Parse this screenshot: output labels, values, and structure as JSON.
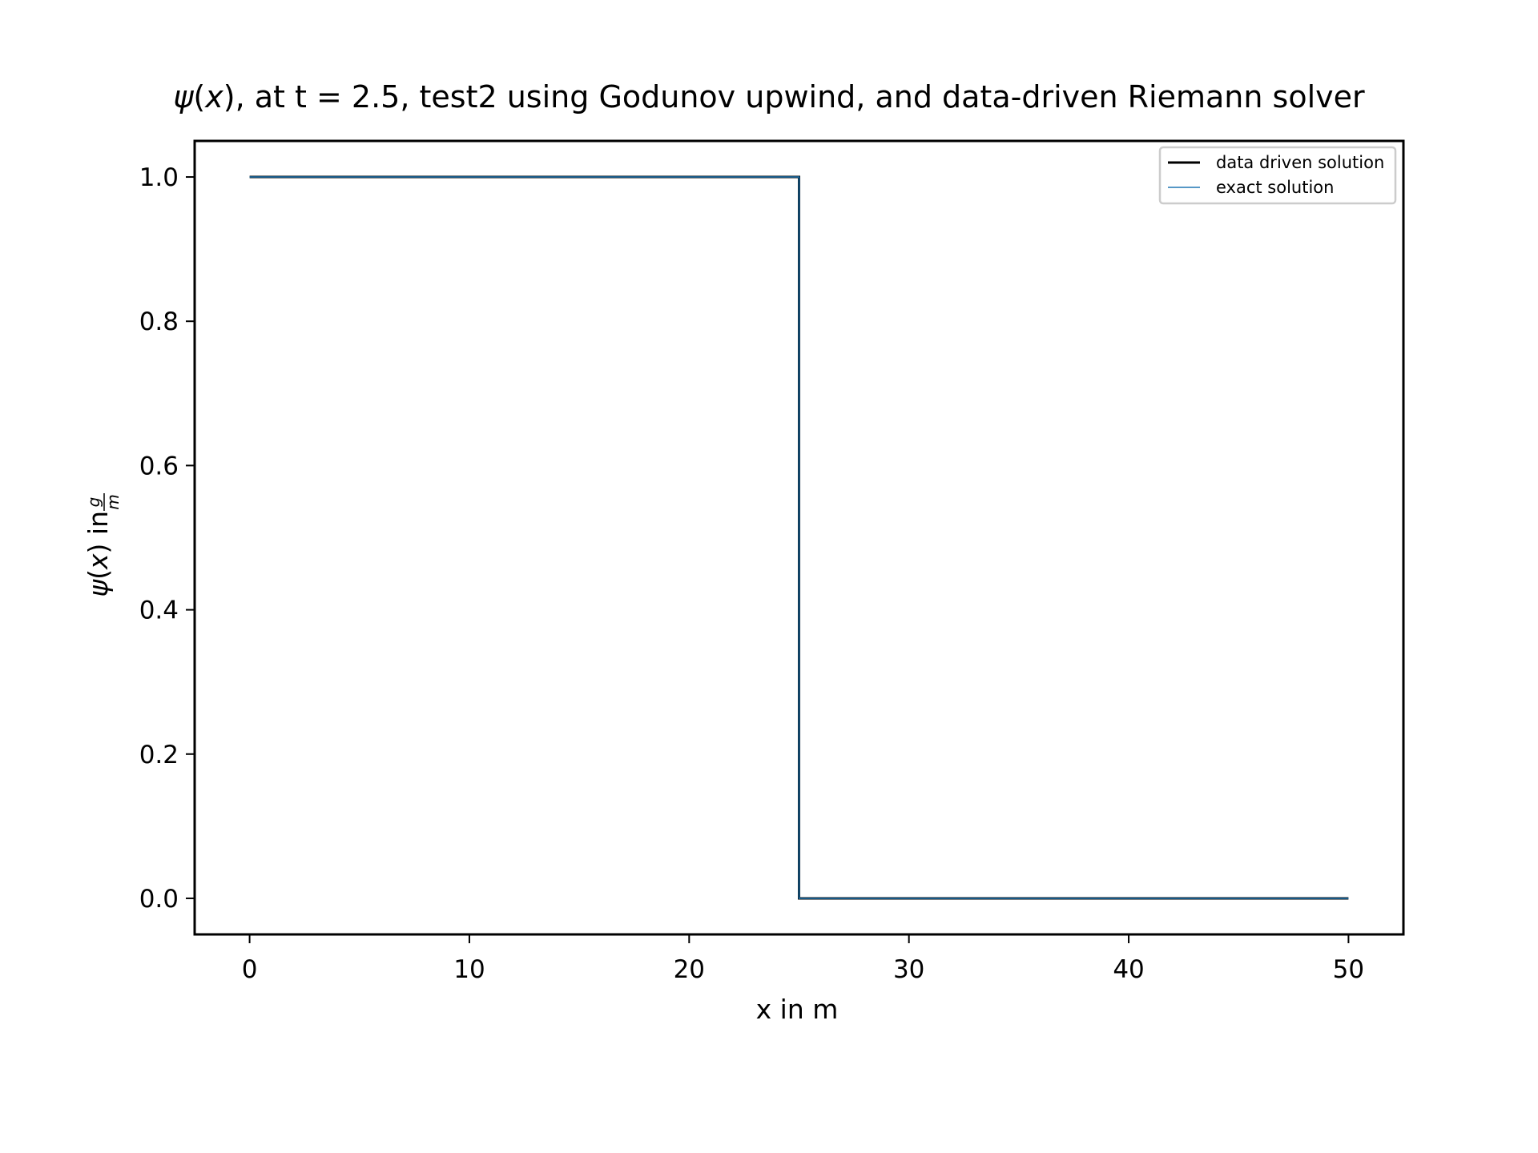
{
  "chart_data": {
    "type": "line",
    "title": "ψ(x), at t = 2.5, test2 using Godunov upwind, and data-driven Riemann solver",
    "title_parts": {
      "symbol": "ψ",
      "arg": "x",
      "rest": ", at t = 2.5, test2 using Godunov upwind, and data-driven Riemann solver"
    },
    "xlabel": "x in m",
    "ylabel": "ψ(x) in g/m",
    "ylabel_parts": {
      "symbol": "ψ",
      "arg": "x",
      "mid": " in ",
      "num": "g",
      "den": "m"
    },
    "xlim": [
      -2.5,
      52.5
    ],
    "ylim": [
      -0.05,
      1.05
    ],
    "x_ticks": [
      0,
      10,
      20,
      30,
      40,
      50
    ],
    "x_tick_labels": [
      "0",
      "10",
      "20",
      "30",
      "40",
      "50"
    ],
    "y_ticks": [
      0.0,
      0.2,
      0.4,
      0.6,
      0.8,
      1.0
    ],
    "y_tick_labels": [
      "0.0",
      "0.2",
      "0.4",
      "0.6",
      "0.8",
      "1.0"
    ],
    "grid": false,
    "legend_position": "top-right",
    "series": [
      {
        "name": "data driven solution",
        "color": "#000000",
        "x": [
          0,
          25,
          25,
          50
        ],
        "y": [
          1.0,
          1.0,
          0.0,
          0.0
        ]
      },
      {
        "name": "exact solution",
        "color": "#1f77b4",
        "x": [
          0,
          25,
          25,
          50
        ],
        "y": [
          1.0,
          1.0,
          0.0,
          0.0
        ]
      }
    ]
  }
}
